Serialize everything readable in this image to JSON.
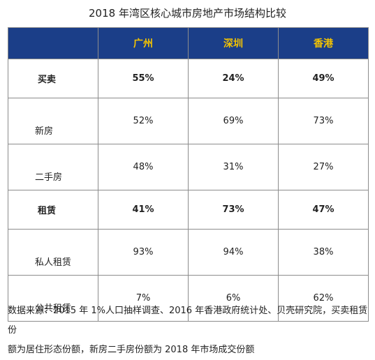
{
  "title": "2018 年湾区核心城市房地产市场结构比较",
  "columns": [
    "广州",
    "深圳",
    "香港"
  ],
  "rows": [
    {
      "label": "买卖",
      "values": [
        "55%",
        "24%",
        "49%"
      ]
    },
    {
      "label": "新房",
      "values": [
        "52%",
        "69%",
        "73%"
      ]
    },
    {
      "label": "二手房",
      "values": [
        "48%",
        "31%",
        "27%"
      ]
    },
    {
      "label": "租赁",
      "values": [
        "41%",
        "73%",
        "47%"
      ]
    },
    {
      "label": "私人租赁",
      "values": [
        "93%",
        "94%",
        "38%"
      ]
    },
    {
      "label": "公共租赁",
      "values": [
        "7%",
        "6%",
        "62%"
      ]
    }
  ],
  "note": {
    "line1": "数据来源：2015 年 1%人口抽样调查、2016 年香港政府统计处、贝壳研究院，买卖租赁份",
    "line2": "额为居住形态份额，新房二手房份额为 2018 年市场成交份额"
  },
  "colors": {
    "header_bg": "#1b3e88",
    "header_text": "#f5c400",
    "border": "#8c8c8c"
  }
}
